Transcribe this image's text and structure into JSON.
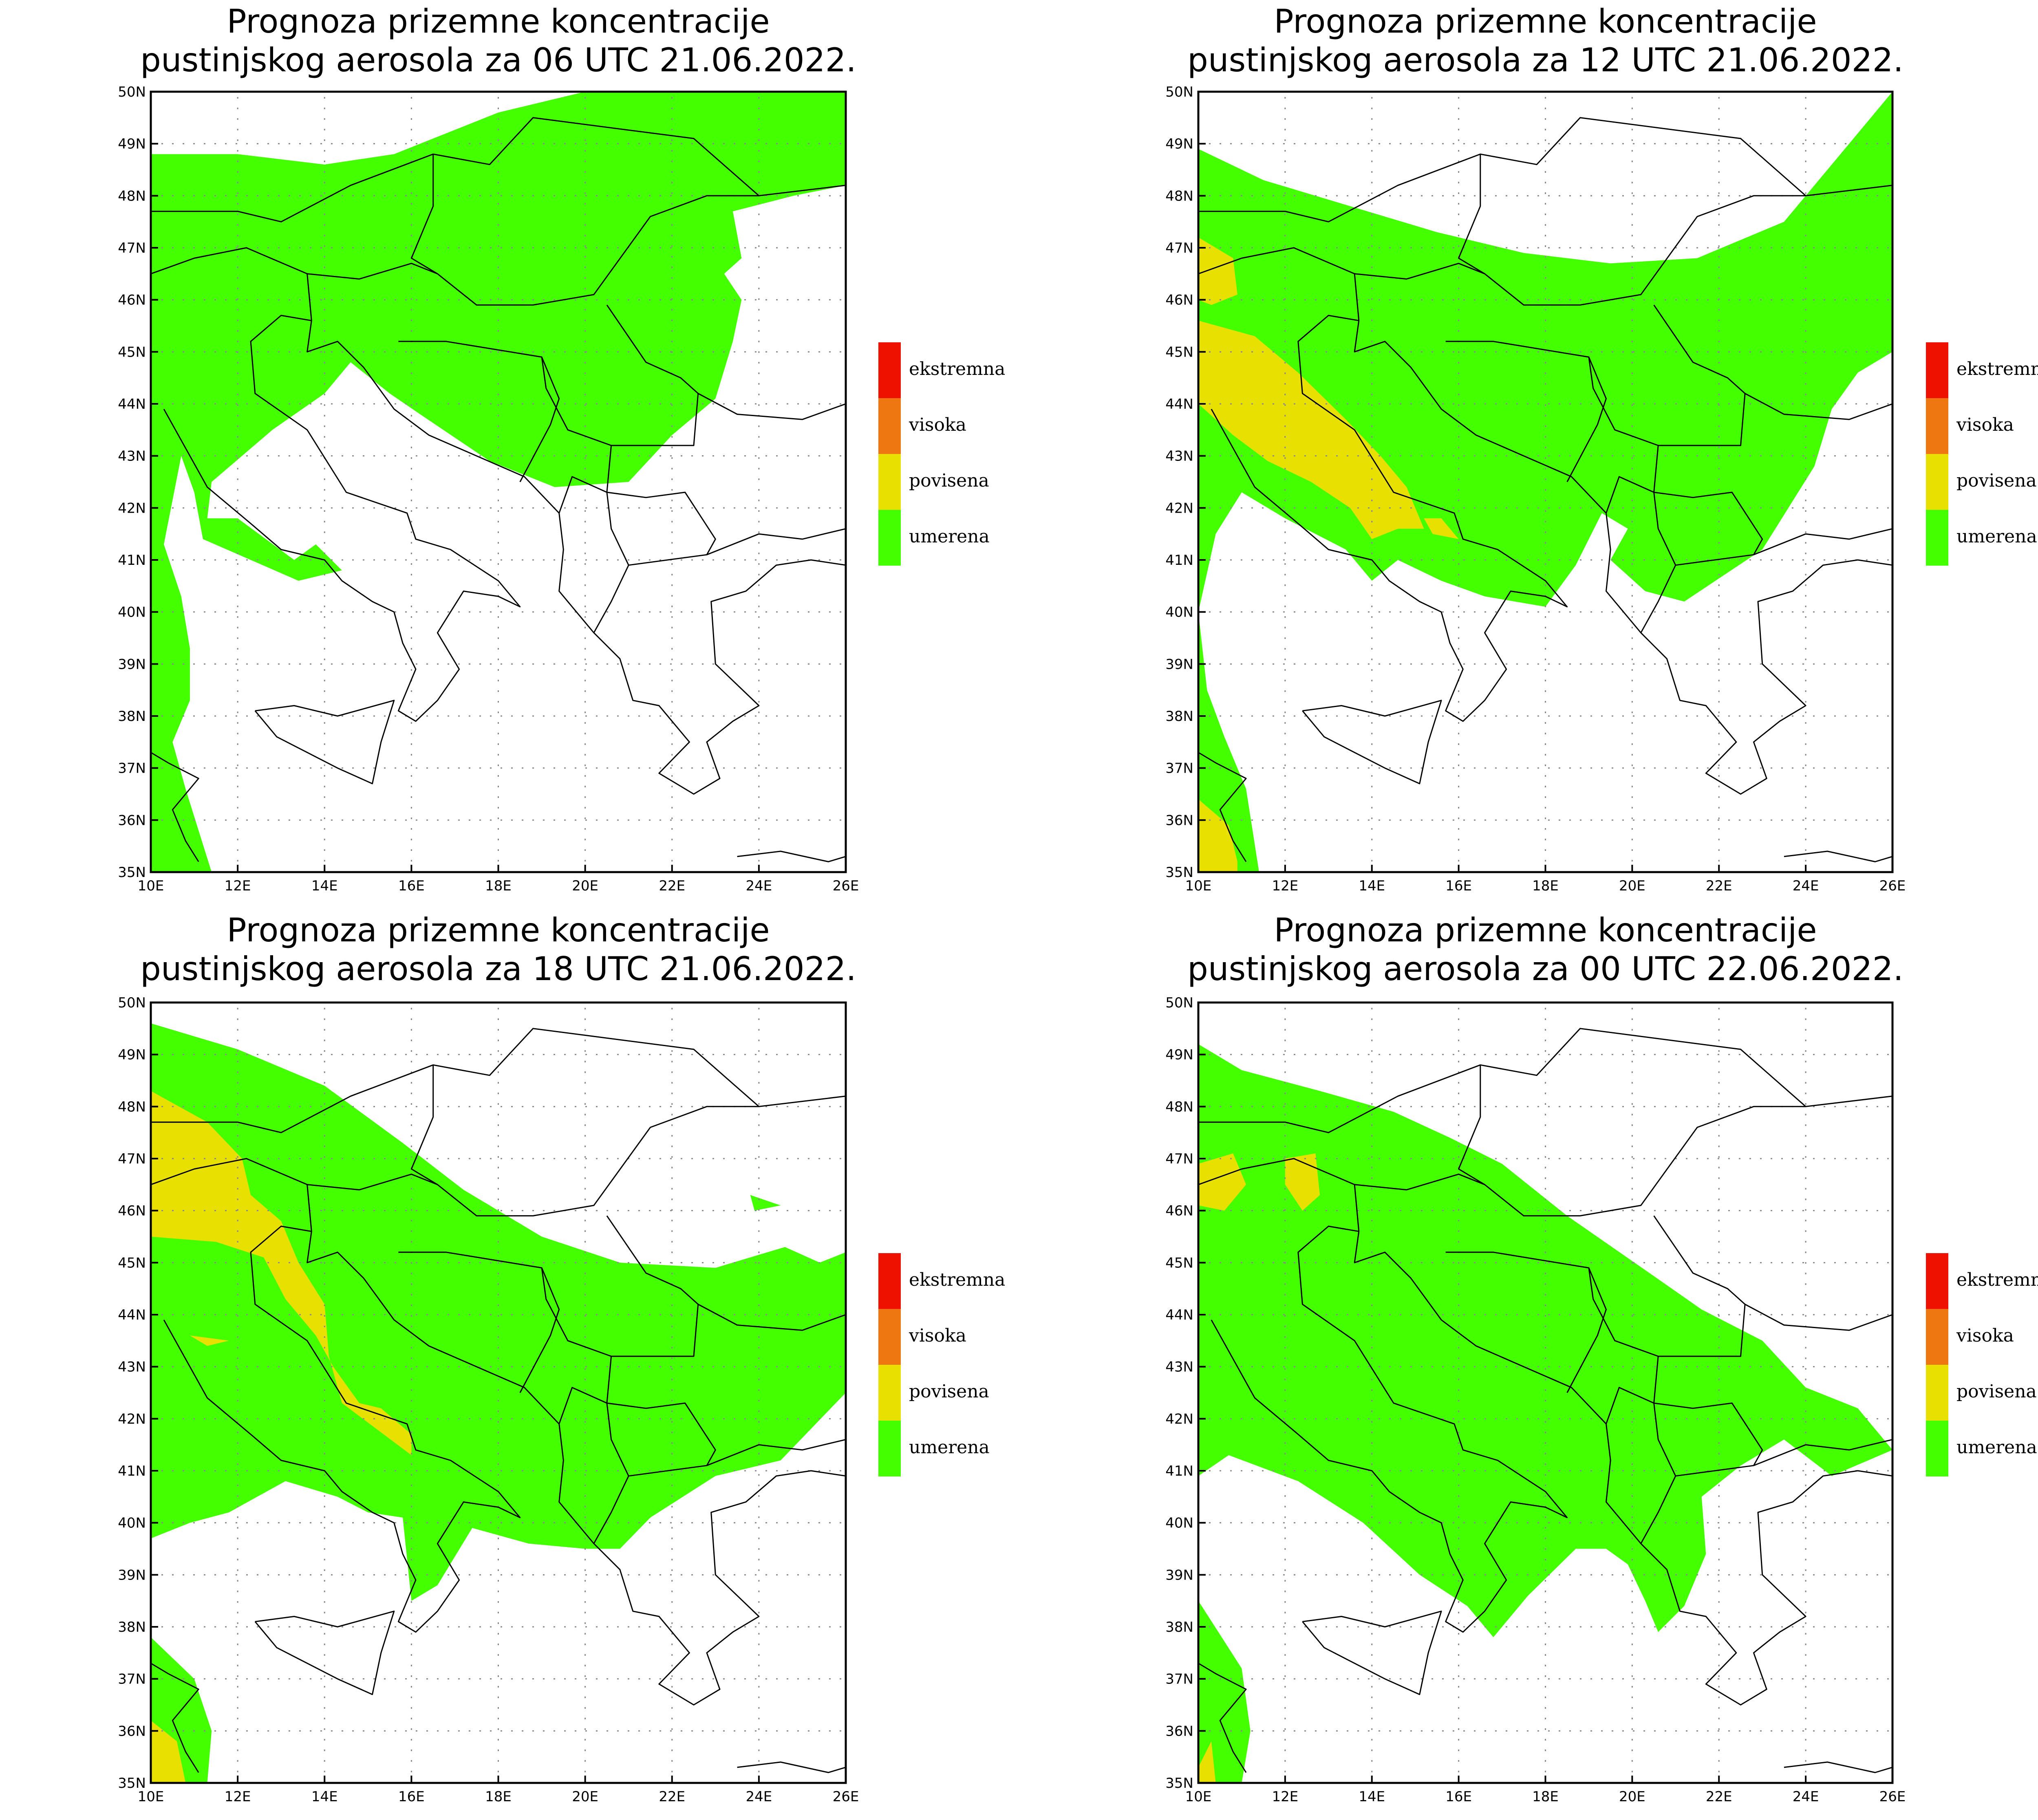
{
  "panels": [
    {
      "title_line1": "Prognoza prizemne koncentracije",
      "title_line2": "pustinjskog aerosola za 06 UTC 21.06.2022.",
      "scenario": "p06"
    },
    {
      "title_line1": "Prognoza prizemne koncentracije",
      "title_line2": "pustinjskog aerosola za 12 UTC 21.06.2022.",
      "scenario": "p12"
    },
    {
      "title_line1": "Prognoza prizemne koncentracije",
      "title_line2": "pustinjskog aerosola za 18 UTC 21.06.2022.",
      "scenario": "p18"
    },
    {
      "title_line1": "Prognoza prizemne koncentracije",
      "title_line2": "pustinjskog aerosola za 00 UTC 22.06.2022.",
      "scenario": "p00"
    }
  ],
  "lon_labels": [
    "10E",
    "12E",
    "14E",
    "16E",
    "18E",
    "20E",
    "22E",
    "24E",
    "26E"
  ],
  "lat_labels": [
    "35N",
    "36N",
    "37N",
    "38N",
    "39N",
    "40N",
    "41N",
    "42N",
    "43N",
    "44N",
    "45N",
    "46N",
    "47N",
    "48N",
    "49N",
    "50N"
  ],
  "legend": [
    {
      "label": "ekstremna",
      "color": "#ee1100"
    },
    {
      "label": "visoka",
      "color": "#ee7711"
    },
    {
      "label": "povisena",
      "color": "#e8e000"
    },
    {
      "label": "umerena",
      "color": "#44ff00"
    }
  ],
  "colors": {
    "moderate": "#44ff00",
    "elevated": "#e8e000",
    "extreme": "#ee1100",
    "high": "#ee7711",
    "border": "#000000",
    "grid": "#888888"
  }
}
